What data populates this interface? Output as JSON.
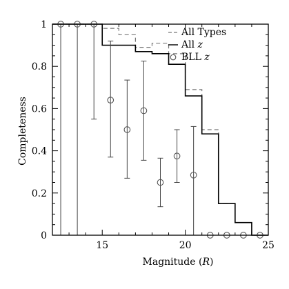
{
  "chart_data": {
    "type": "line",
    "xlabel": "Magnitude (R)",
    "xlabel_main": "Magnitude (",
    "xlabel_var": "R",
    "xlabel_end": ")",
    "ylabel": "Completeness",
    "xlim": [
      12,
      25
    ],
    "ylim": [
      0,
      1
    ],
    "xticks": [
      15,
      20,
      25
    ],
    "yticks": [
      0,
      0.2,
      0.4,
      0.6,
      0.8,
      1
    ],
    "ytick_labels": [
      "0",
      "0.2",
      "0.4",
      "0.6",
      "0.8",
      "1"
    ],
    "legend_position": "top-right",
    "series": [
      {
        "name": "All Types",
        "style": "dashed-step",
        "bins": [
          12,
          13,
          14,
          15,
          16,
          17,
          18,
          19,
          20,
          21,
          22,
          23,
          24,
          25
        ],
        "values": [
          1.0,
          1.0,
          1.0,
          0.98,
          0.95,
          0.89,
          0.91,
          0.86,
          0.69,
          0.5,
          0.15,
          0.06,
          0.0
        ]
      },
      {
        "name": "All",
        "name_var": "z",
        "style": "solid-step",
        "bins": [
          12,
          13,
          14,
          15,
          16,
          17,
          18,
          19,
          20,
          21,
          22,
          23,
          24,
          25
        ],
        "values": [
          1.0,
          1.0,
          1.0,
          0.9,
          0.9,
          0.87,
          0.86,
          0.81,
          0.66,
          0.48,
          0.15,
          0.06,
          0.0
        ]
      },
      {
        "name": "BLL",
        "name_var": "z",
        "style": "points-errorbars",
        "x": [
          12.5,
          13.5,
          14.5,
          15.5,
          16.5,
          17.5,
          18.5,
          19.5,
          20.5,
          21.5,
          22.5,
          23.5,
          24.5
        ],
        "y": [
          1.0,
          1.0,
          1.0,
          0.64,
          0.5,
          0.59,
          0.25,
          0.375,
          0.285,
          0.0,
          0.0,
          0.0,
          0.0
        ],
        "err_low": [
          1.0,
          1.0,
          0.45,
          0.27,
          0.23,
          0.235,
          0.115,
          0.125,
          0.285,
          0,
          0,
          0,
          0
        ],
        "err_high": [
          0,
          0,
          0,
          0.28,
          0.235,
          0.235,
          0.115,
          0.125,
          0.23,
          0,
          0,
          0,
          0
        ]
      }
    ]
  }
}
